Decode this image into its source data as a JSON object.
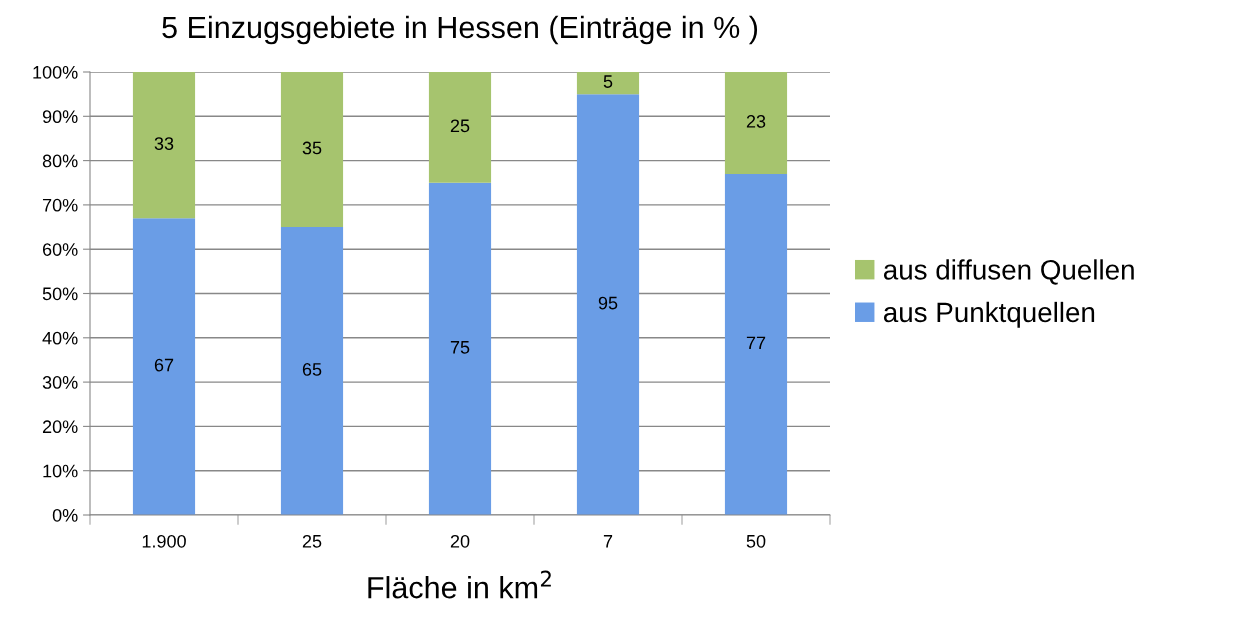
{
  "chart_data": {
    "type": "bar",
    "title": "5 Einzugsgebiete in Hessen (Einträge in % )",
    "xlabel": "Fläche in km$^{2}$",
    "categories": [
      "1.900",
      "25",
      "20",
      "7",
      "50"
    ],
    "series": [
      {
        "name": "aus Punktquellen",
        "color": "#6a9de6",
        "values": [
          67,
          65,
          75,
          95,
          77
        ]
      },
      {
        "name": "aus diffusen Quellen",
        "color": "#a6c46e",
        "values": [
          33,
          35,
          25,
          5,
          23
        ]
      }
    ],
    "stacked": true,
    "data_labels": true,
    "ylim": [
      0,
      100
    ],
    "yticks": [
      {
        "value": 0,
        "label": "0%"
      },
      {
        "value": 10,
        "label": "10%"
      },
      {
        "value": 20,
        "label": "20%"
      },
      {
        "value": 30,
        "label": "30%"
      },
      {
        "value": 40,
        "label": "40%"
      },
      {
        "value": 50,
        "label": "50%"
      },
      {
        "value": 60,
        "label": "60%"
      },
      {
        "value": 70,
        "label": "70%"
      },
      {
        "value": 80,
        "label": "80%"
      },
      {
        "value": 90,
        "label": "90%"
      },
      {
        "value": 100,
        "label": "100%"
      }
    ],
    "grid": "y",
    "legend": "right"
  }
}
